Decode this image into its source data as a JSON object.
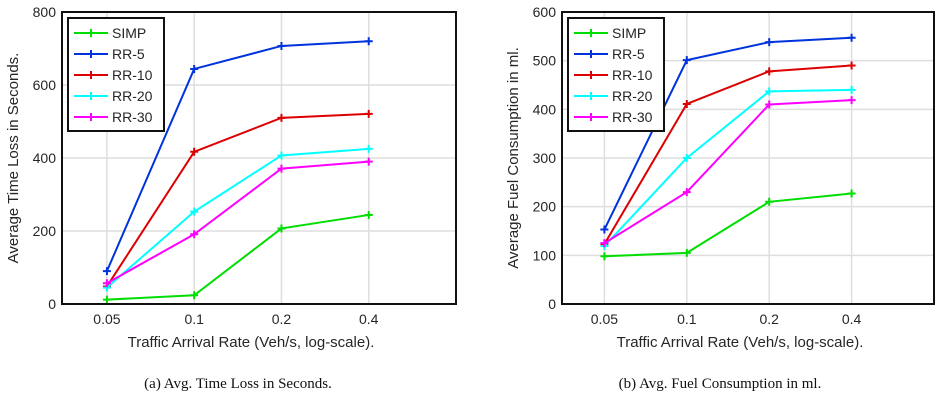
{
  "chart_data": [
    {
      "type": "line",
      "caption": "(a) Avg. Time Loss in Seconds.",
      "xlabel": "Traffic Arrival Rate (Veh/s, log-scale).",
      "ylabel": "Average Time Loss in Seconds.",
      "x_scale": "log",
      "x": [
        0.05,
        0.1,
        0.2,
        0.4
      ],
      "x_tick_labels": [
        "0.05",
        "0.1",
        "0.2",
        "0.4"
      ],
      "ylim": [
        0,
        800
      ],
      "y_ticks": [
        0,
        200,
        400,
        600,
        800
      ],
      "grid": true,
      "legend_position": "top-left",
      "series": [
        {
          "name": "SIMP",
          "color": "#00dd00",
          "values": [
            12,
            24,
            207,
            244
          ]
        },
        {
          "name": "RR-5",
          "color": "#0033dd",
          "values": [
            90,
            644,
            707,
            720
          ]
        },
        {
          "name": "RR-10",
          "color": "#dd0000",
          "values": [
            48,
            417,
            510,
            521
          ]
        },
        {
          "name": "RR-20",
          "color": "#00ffff",
          "values": [
            45,
            253,
            407,
            425
          ]
        },
        {
          "name": "RR-30",
          "color": "#ff00ff",
          "values": [
            57,
            191,
            371,
            390
          ]
        }
      ]
    },
    {
      "type": "line",
      "caption": "(b) Avg. Fuel Consumption in ml.",
      "xlabel": "Traffic Arrival Rate (Veh/s, log-scale).",
      "ylabel": "Average Fuel Consumption in ml.",
      "x_scale": "log",
      "x": [
        0.05,
        0.1,
        0.2,
        0.4
      ],
      "x_tick_labels": [
        "0.05",
        "0.1",
        "0.2",
        "0.4"
      ],
      "ylim": [
        0,
        600
      ],
      "y_ticks": [
        0,
        100,
        200,
        300,
        400,
        500,
        600
      ],
      "grid": true,
      "legend_position": "top-left",
      "series": [
        {
          "name": "SIMP",
          "color": "#00dd00",
          "values": [
            98,
            105,
            210,
            227
          ]
        },
        {
          "name": "RR-5",
          "color": "#0033dd",
          "values": [
            153,
            501,
            538,
            547
          ]
        },
        {
          "name": "RR-10",
          "color": "#dd0000",
          "values": [
            123,
            411,
            478,
            490
          ]
        },
        {
          "name": "RR-20",
          "color": "#00ffff",
          "values": [
            119,
            300,
            437,
            440
          ]
        },
        {
          "name": "RR-30",
          "color": "#ff00ff",
          "values": [
            125,
            230,
            410,
            419
          ]
        }
      ]
    }
  ]
}
